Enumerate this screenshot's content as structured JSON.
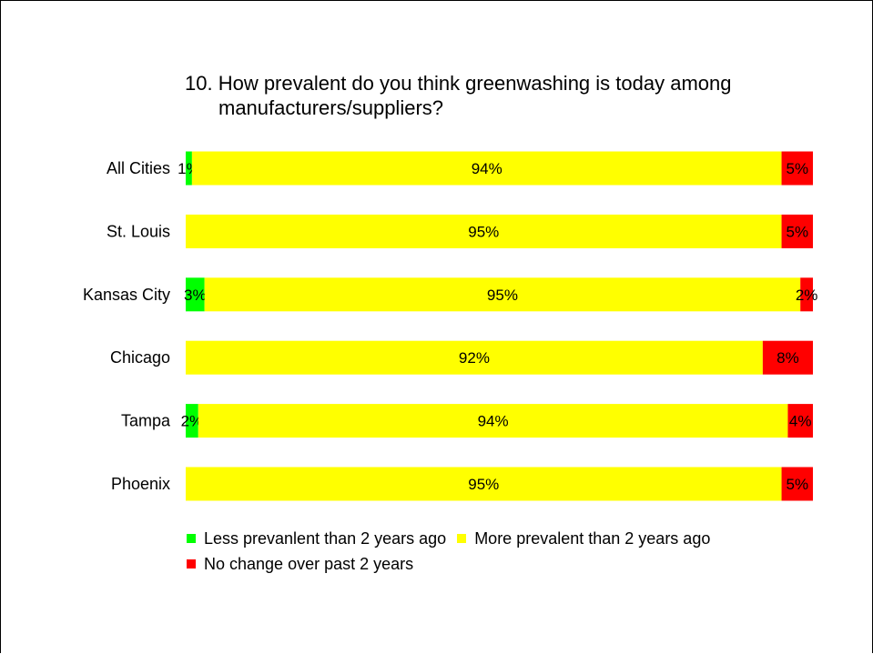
{
  "chart_data": {
    "type": "bar",
    "orientation": "horizontal",
    "stacked": "percent",
    "title": "10. How prevalent do you think greenwashing is today among manufacturers/suppliers?",
    "title_lines": [
      "10. How prevalent do you think greenwashing is today among",
      "manufacturers/suppliers?"
    ],
    "categories": [
      "All Cities",
      "St. Louis",
      "Kansas City",
      "Chicago",
      "Tampa",
      "Phoenix"
    ],
    "series": [
      {
        "name": "Less prevanlent than 2 years ago",
        "color": "#00ff00",
        "values": [
          1,
          0,
          3,
          0,
          2,
          0
        ],
        "labels": [
          "1%",
          "",
          "3%",
          "",
          "2%",
          ""
        ]
      },
      {
        "name": "More prevalent than 2 years ago",
        "color": "#ffff00",
        "values": [
          94,
          95,
          95,
          92,
          94,
          95
        ],
        "labels": [
          "94%",
          "95%",
          "95%",
          "92%",
          "94%",
          "95%"
        ]
      },
      {
        "name": "No change over past 2 years",
        "color": "#ff0000",
        "values": [
          5,
          5,
          2,
          8,
          4,
          5
        ],
        "labels": [
          "5%",
          "5%",
          "2%",
          "8%",
          "4%",
          "5%"
        ]
      }
    ],
    "xlim": [
      0,
      100
    ],
    "grid": false,
    "legend": "bottom"
  }
}
